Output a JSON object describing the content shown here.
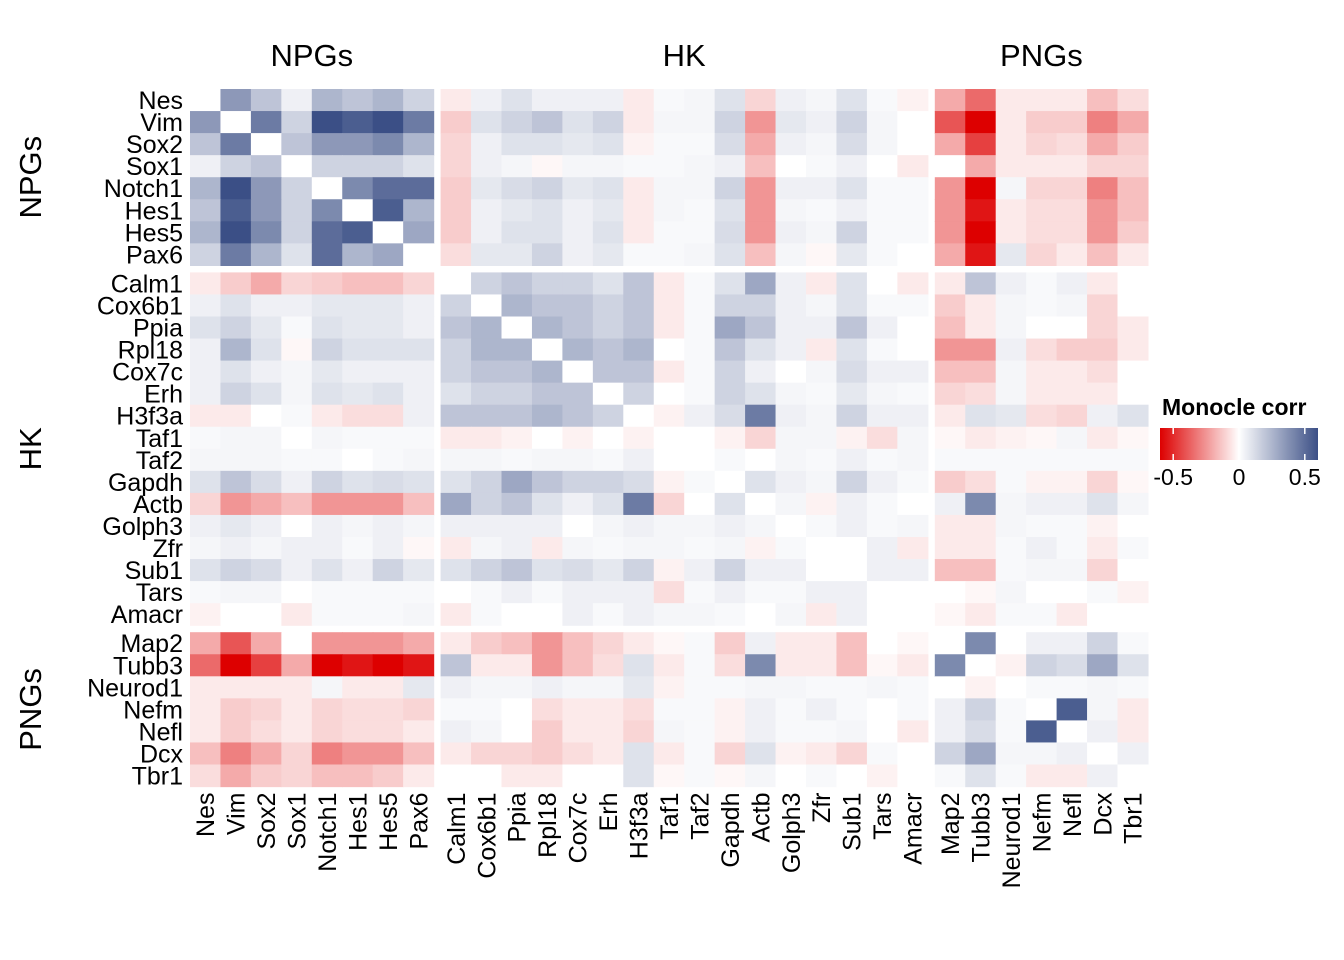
{
  "chart_data": {
    "type": "heatmap",
    "legend": {
      "title": "Monocle corr",
      "ticks": [
        -0.5,
        0,
        0.5
      ],
      "tick_labels": [
        "-0.5",
        "0",
        "0.5"
      ],
      "range": [
        -0.6,
        0.6
      ],
      "colors": {
        "low": "#DD0000",
        "mid": "#FFFFFF",
        "high": "#3B4F86"
      },
      "placement": "right"
    },
    "groups": [
      {
        "name": "NPGs",
        "genes": [
          "Nes",
          "Vim",
          "Sox2",
          "Sox1",
          "Notch1",
          "Hes1",
          "Hes5",
          "Pax6"
        ]
      },
      {
        "name": "HK",
        "genes": [
          "Calm1",
          "Cox6b1",
          "Ppia",
          "Rpl18",
          "Cox7c",
          "Erh",
          "H3f3a",
          "Taf1",
          "Taf2",
          "Gapdh",
          "Actb",
          "Golph3",
          "Zfr",
          "Sub1",
          "Tars",
          "Amacr"
        ]
      },
      {
        "name": "PNGs",
        "genes": [
          "Map2",
          "Tubb3",
          "Neurod1",
          "Nefm",
          "Nefl",
          "Dcx",
          "Tbr1"
        ]
      }
    ],
    "genes": [
      "Nes",
      "Vim",
      "Sox2",
      "Sox1",
      "Notch1",
      "Hes1",
      "Hes5",
      "Pax6",
      "Calm1",
      "Cox6b1",
      "Ppia",
      "Rpl18",
      "Cox7c",
      "Erh",
      "H3f3a",
      "Taf1",
      "Taf2",
      "Gapdh",
      "Actb",
      "Golph3",
      "Zfr",
      "Sub1",
      "Tars",
      "Amacr",
      "Map2",
      "Tubb3",
      "Neurod1",
      "Nefm",
      "Nefl",
      "Dcx",
      "Tbr1"
    ],
    "values": [
      [
        0,
        0.35,
        0.2,
        0.05,
        0.25,
        0.2,
        0.25,
        0.15,
        -0.05,
        0.05,
        0.1,
        0.05,
        0.05,
        0.05,
        -0.05,
        0.02,
        0.03,
        0.1,
        -0.1,
        0.05,
        0.03,
        0.1,
        0.02,
        -0.03,
        -0.2,
        -0.35,
        -0.05,
        -0.05,
        -0.05,
        -0.15,
        -0.08
      ],
      [
        0.35,
        0,
        0.45,
        0.15,
        0.6,
        0.55,
        0.6,
        0.45,
        -0.12,
        0.1,
        0.15,
        0.2,
        0.1,
        0.15,
        -0.05,
        0.03,
        0.03,
        0.15,
        -0.25,
        0.08,
        0.05,
        0.15,
        0.03,
        0,
        -0.4,
        -0.6,
        -0.05,
        -0.12,
        -0.12,
        -0.3,
        -0.2
      ],
      [
        0.2,
        0.45,
        0,
        0.2,
        0.35,
        0.35,
        0.4,
        0.25,
        -0.1,
        0.05,
        0.1,
        0.1,
        0.08,
        0.1,
        -0.03,
        0.02,
        0.02,
        0.12,
        -0.2,
        0.05,
        0.03,
        0.12,
        0.03,
        0,
        -0.2,
        -0.45,
        -0.05,
        -0.1,
        -0.08,
        -0.2,
        -0.12
      ],
      [
        0.05,
        0.15,
        0.2,
        0,
        0.15,
        0.15,
        0.15,
        0.1,
        -0.1,
        0.05,
        0.03,
        -0.02,
        0.03,
        0.03,
        0.02,
        0.02,
        0.03,
        0.05,
        -0.15,
        0,
        0.02,
        0.05,
        0,
        -0.05,
        0,
        -0.2,
        -0.05,
        -0.05,
        -0.05,
        -0.1,
        -0.1
      ],
      [
        0.25,
        0.6,
        0.35,
        0.15,
        0,
        0.4,
        0.5,
        0.5,
        -0.12,
        0.08,
        0.12,
        0.15,
        0.08,
        0.1,
        -0.05,
        0.03,
        0.03,
        0.15,
        -0.25,
        0.05,
        0.05,
        0.1,
        0.02,
        0.02,
        -0.25,
        -0.6,
        0.03,
        -0.1,
        -0.1,
        -0.3,
        -0.15
      ],
      [
        0.2,
        0.55,
        0.35,
        0.15,
        0.4,
        0,
        0.55,
        0.25,
        -0.12,
        0.05,
        0.08,
        0.1,
        0.05,
        0.08,
        -0.05,
        0.03,
        0.02,
        0.1,
        -0.25,
        0.03,
        0.02,
        0.05,
        0.02,
        0.02,
        -0.25,
        -0.55,
        -0.05,
        -0.08,
        -0.08,
        -0.25,
        -0.15
      ],
      [
        0.25,
        0.6,
        0.4,
        0.15,
        0.5,
        0.55,
        0,
        0.3,
        -0.12,
        0.05,
        0.1,
        0.1,
        0.05,
        0.1,
        -0.05,
        0.02,
        0.02,
        0.12,
        -0.25,
        0.05,
        0.03,
        0.15,
        0.02,
        0.02,
        -0.25,
        -0.6,
        -0.05,
        -0.08,
        -0.08,
        -0.25,
        -0.12
      ],
      [
        0.15,
        0.45,
        0.25,
        0.1,
        0.5,
        0.25,
        0.3,
        0,
        -0.08,
        0.08,
        0.08,
        0.15,
        0.05,
        0.08,
        0.02,
        0.02,
        0.03,
        0.1,
        -0.15,
        0.03,
        -0.02,
        0.08,
        0.02,
        0,
        -0.2,
        -0.55,
        0.08,
        -0.1,
        -0.05,
        -0.15,
        -0.05
      ],
      [
        -0.05,
        -0.12,
        -0.2,
        -0.1,
        -0.12,
        -0.15,
        -0.15,
        -0.1,
        0,
        0.15,
        0.2,
        0.15,
        0.15,
        0.1,
        0.2,
        -0.05,
        0.02,
        0.1,
        0.3,
        0.05,
        -0.05,
        0.1,
        0,
        -0.05,
        -0.05,
        0.2,
        0.05,
        0.02,
        0.05,
        -0.05,
        0
      ],
      [
        0.05,
        0.1,
        0.05,
        0.05,
        0.08,
        0.08,
        0.08,
        0.05,
        0.15,
        0,
        0.25,
        0.2,
        0.2,
        0.15,
        0.2,
        -0.05,
        0.02,
        0.15,
        0.15,
        0.05,
        0.03,
        0.1,
        0.02,
        0.02,
        -0.12,
        -0.05,
        0.03,
        0.02,
        0.03,
        -0.1,
        0
      ],
      [
        0.1,
        0.15,
        0.08,
        0.02,
        0.1,
        0.08,
        0.08,
        0.05,
        0.2,
        0.25,
        0,
        0.25,
        0.2,
        0.15,
        0.2,
        -0.05,
        0.02,
        0.3,
        0.2,
        0.05,
        0.05,
        0.2,
        0.05,
        0,
        -0.15,
        -0.05,
        0.03,
        0,
        0,
        -0.1,
        -0.05
      ],
      [
        0.05,
        0.25,
        0.1,
        -0.02,
        0.15,
        0.1,
        0.1,
        0.1,
        0.15,
        0.25,
        0.25,
        0,
        0.25,
        0.2,
        0.25,
        0,
        0.02,
        0.2,
        0.1,
        0.05,
        -0.05,
        0.1,
        0.02,
        0,
        -0.25,
        -0.25,
        0.05,
        -0.08,
        -0.12,
        -0.12,
        -0.05
      ],
      [
        0.05,
        0.1,
        0.05,
        0.03,
        0.08,
        0.05,
        0.05,
        0.05,
        0.15,
        0.2,
        0.2,
        0.25,
        0,
        0.2,
        0.2,
        -0.05,
        0.02,
        0.15,
        0.05,
        0,
        0.03,
        0.12,
        0.05,
        0.05,
        -0.15,
        -0.15,
        0.03,
        -0.05,
        -0.05,
        -0.08,
        0
      ],
      [
        0.05,
        0.15,
        0.1,
        0.03,
        0.1,
        0.08,
        0.1,
        0.05,
        0.1,
        0.15,
        0.15,
        0.2,
        0.2,
        0,
        0.15,
        0,
        0.02,
        0.15,
        0.1,
        0.03,
        0.02,
        0.08,
        0.03,
        0.02,
        -0.1,
        -0.08,
        0.03,
        -0.05,
        -0.05,
        -0.05,
        0
      ],
      [
        -0.05,
        -0.05,
        0,
        0.02,
        -0.05,
        -0.08,
        -0.08,
        0.05,
        0.2,
        0.2,
        0.2,
        0.25,
        0.2,
        0.15,
        0,
        -0.03,
        0.05,
        0.12,
        0.45,
        0.05,
        0.03,
        0.15,
        0.05,
        0.05,
        -0.05,
        0.1,
        0.08,
        -0.08,
        -0.1,
        0.05,
        0.1
      ],
      [
        0.02,
        0.03,
        0.03,
        0,
        0.03,
        0.02,
        0.02,
        0.02,
        -0.05,
        -0.05,
        -0.03,
        0,
        -0.03,
        0,
        -0.03,
        0,
        0,
        -0.03,
        -0.1,
        0.03,
        0.03,
        -0.03,
        -0.08,
        0.03,
        -0.02,
        -0.05,
        -0.03,
        -0.02,
        0.03,
        -0.05,
        -0.02
      ],
      [
        0.03,
        0.03,
        0.03,
        0.02,
        0.02,
        0,
        0.02,
        0.03,
        0.03,
        0.03,
        0.02,
        0.03,
        0.03,
        0.02,
        0.05,
        0,
        0,
        0.02,
        0,
        0.03,
        0.02,
        0.05,
        0.02,
        0.03,
        0.02,
        0.02,
        0.02,
        0.02,
        0.02,
        0.02,
        0.02
      ],
      [
        0.1,
        0.2,
        0.12,
        0.05,
        0.15,
        0.1,
        0.12,
        0.1,
        0.1,
        0.15,
        0.3,
        0.2,
        0.15,
        0.15,
        0.12,
        -0.03,
        0.02,
        0,
        0.1,
        0.05,
        0.03,
        0.15,
        0.05,
        0.02,
        -0.12,
        -0.08,
        0.02,
        -0.03,
        -0.03,
        -0.1,
        -0.02
      ],
      [
        -0.1,
        -0.25,
        -0.2,
        -0.15,
        -0.25,
        -0.25,
        -0.25,
        -0.15,
        0.3,
        0.15,
        0.2,
        0.1,
        0.05,
        0.1,
        0.45,
        -0.1,
        0,
        0.1,
        0,
        0.03,
        -0.03,
        0.05,
        0.02,
        0,
        0.05,
        0.4,
        0.03,
        0.05,
        0.05,
        0.1,
        0.03
      ],
      [
        0.05,
        0.08,
        0.05,
        0,
        0.05,
        0.03,
        0.05,
        0.03,
        0.05,
        0.05,
        0.05,
        0.05,
        0,
        0.03,
        0.05,
        0.03,
        0.03,
        0.05,
        0.03,
        0,
        0.02,
        0.05,
        0.02,
        0.03,
        -0.05,
        -0.05,
        0.03,
        0.02,
        0.02,
        -0.03,
        0
      ],
      [
        0.03,
        0.05,
        0.03,
        0.05,
        0.05,
        0.02,
        0.05,
        -0.02,
        -0.05,
        0.03,
        0.05,
        -0.05,
        0.03,
        0.02,
        0.03,
        0.03,
        0.02,
        0.03,
        -0.03,
        0.02,
        0,
        0,
        0.05,
        -0.05,
        -0.05,
        -0.05,
        0.02,
        0.05,
        0.02,
        -0.05,
        0.02
      ],
      [
        0.1,
        0.15,
        0.12,
        0.05,
        0.1,
        0.05,
        0.15,
        0.08,
        0.1,
        0.15,
        0.2,
        0.1,
        0.12,
        0.08,
        0.15,
        -0.03,
        0.05,
        0.15,
        0.05,
        0.05,
        0,
        0,
        0.05,
        0.05,
        -0.15,
        -0.15,
        0.02,
        0.03,
        0.03,
        -0.1,
        0
      ],
      [
        0.02,
        0.03,
        0.03,
        0,
        0.02,
        0.02,
        0.02,
        0.02,
        0,
        0.02,
        0.05,
        0.02,
        0.05,
        0.05,
        0.05,
        -0.08,
        0.02,
        0.05,
        0.02,
        0.02,
        0.05,
        0.05,
        0,
        0,
        0,
        -0.02,
        0.03,
        0,
        0,
        0.02,
        -0.03
      ],
      [
        -0.03,
        0,
        0,
        -0.05,
        0.02,
        0.02,
        0.02,
        0.03,
        -0.05,
        0.02,
        0,
        0,
        0.05,
        0.02,
        0.05,
        0.03,
        0.03,
        0.02,
        0,
        0.03,
        -0.05,
        0.05,
        0,
        0,
        -0.02,
        -0.05,
        0.02,
        0.02,
        -0.05,
        0,
        0
      ],
      [
        -0.2,
        -0.4,
        -0.2,
        0,
        -0.25,
        -0.25,
        -0.25,
        -0.2,
        -0.05,
        -0.12,
        -0.15,
        -0.25,
        -0.15,
        -0.1,
        -0.05,
        -0.02,
        0.02,
        -0.12,
        0.05,
        -0.05,
        -0.05,
        -0.15,
        0,
        -0.02,
        0,
        0.4,
        0,
        0.05,
        0.05,
        0.15,
        0.02
      ],
      [
        -0.35,
        -0.6,
        -0.45,
        -0.2,
        -0.6,
        -0.55,
        -0.6,
        -0.55,
        0.2,
        -0.05,
        -0.05,
        -0.25,
        -0.15,
        -0.08,
        0.1,
        -0.05,
        0.02,
        -0.08,
        0.4,
        -0.05,
        -0.05,
        -0.15,
        -0.02,
        -0.05,
        0.4,
        0,
        -0.03,
        0.15,
        0.12,
        0.3,
        0.1
      ],
      [
        -0.05,
        -0.05,
        -0.05,
        -0.05,
        0.03,
        -0.05,
        -0.05,
        0.08,
        0.05,
        0.03,
        0.03,
        0.05,
        0.03,
        0.03,
        0.08,
        -0.03,
        0.02,
        0.02,
        0.03,
        0.03,
        0.02,
        0.02,
        0.03,
        0.02,
        0,
        -0.03,
        0,
        0.02,
        0.02,
        0.03,
        0.02
      ],
      [
        -0.05,
        -0.12,
        -0.1,
        -0.05,
        -0.1,
        -0.08,
        -0.08,
        -0.1,
        0.02,
        0.02,
        0,
        -0.08,
        -0.05,
        -0.05,
        -0.08,
        0.02,
        0.02,
        -0.03,
        0.05,
        0.02,
        0.05,
        0.02,
        0,
        0.02,
        0.05,
        0.15,
        0.02,
        0,
        0.55,
        0.03,
        -0.05
      ],
      [
        -0.05,
        -0.12,
        -0.08,
        -0.05,
        -0.1,
        -0.08,
        -0.08,
        -0.05,
        0.05,
        0.03,
        0,
        -0.12,
        -0.05,
        -0.05,
        -0.1,
        0.03,
        0.02,
        -0.03,
        0.05,
        0.02,
        0.02,
        0.03,
        0,
        -0.05,
        0.05,
        0.12,
        0.02,
        0.55,
        0,
        0.05,
        -0.05
      ],
      [
        -0.15,
        -0.3,
        -0.2,
        -0.1,
        -0.3,
        -0.25,
        -0.25,
        -0.15,
        -0.05,
        -0.1,
        -0.1,
        -0.12,
        -0.08,
        -0.05,
        0.1,
        -0.05,
        0.02,
        -0.1,
        0.1,
        -0.03,
        -0.05,
        -0.1,
        0.02,
        0,
        0.15,
        0.3,
        0.03,
        0.03,
        0.05,
        0,
        0.05
      ],
      [
        -0.08,
        -0.2,
        -0.12,
        -0.1,
        -0.15,
        -0.15,
        -0.12,
        -0.05,
        0,
        0,
        -0.05,
        -0.05,
        0,
        0,
        0.1,
        -0.02,
        0.02,
        -0.02,
        0.03,
        0,
        0.02,
        0,
        -0.03,
        0,
        0.02,
        0.1,
        0.02,
        -0.05,
        -0.05,
        0.05,
        0
      ]
    ]
  }
}
